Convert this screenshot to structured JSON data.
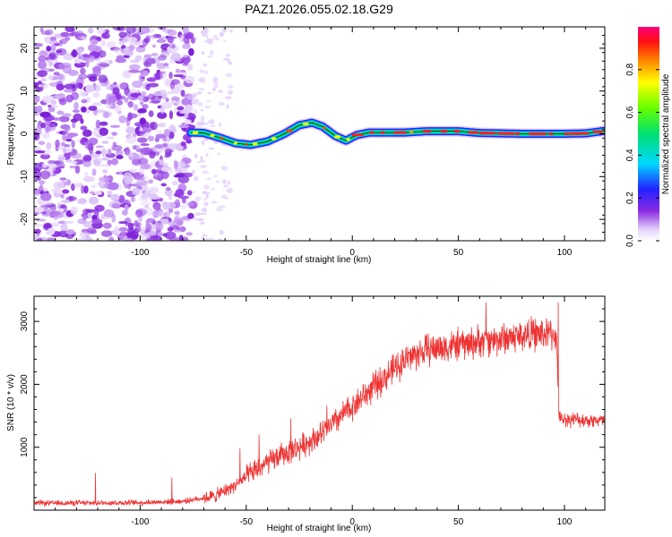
{
  "title": "PAZ1.2026.055.02.18.G29",
  "chart_data": [
    {
      "type": "heatmap",
      "xlabel": "Height of straight line (km)",
      "ylabel": "Frequency (Hz)",
      "xlim": [
        -150,
        119
      ],
      "ylim": [
        -25,
        25
      ],
      "xticks": [
        -100,
        -50,
        0,
        50,
        100
      ],
      "yticks": [
        -20,
        -10,
        0,
        10,
        20
      ],
      "noise_region_x": [
        -150,
        -75
      ],
      "ridge": [
        {
          "x": -76,
          "f": 0.3
        },
        {
          "x": -70,
          "f": 0.2
        },
        {
          "x": -62,
          "f": -1.0
        },
        {
          "x": -55,
          "f": -2.2
        },
        {
          "x": -48,
          "f": -2.6
        },
        {
          "x": -40,
          "f": -1.8
        },
        {
          "x": -32,
          "f": 0.0
        },
        {
          "x": -25,
          "f": 2.0
        },
        {
          "x": -19,
          "f": 2.6
        },
        {
          "x": -14,
          "f": 1.7
        },
        {
          "x": -8,
          "f": -0.5
        },
        {
          "x": -3,
          "f": -1.6
        },
        {
          "x": 2,
          "f": -0.3
        },
        {
          "x": 8,
          "f": 0.3
        },
        {
          "x": 25,
          "f": 0.3
        },
        {
          "x": 35,
          "f": 0.6
        },
        {
          "x": 50,
          "f": 0.6
        },
        {
          "x": 60,
          "f": 0.2
        },
        {
          "x": 80,
          "f": 0.0
        },
        {
          "x": 100,
          "f": 0.0
        },
        {
          "x": 110,
          "f": 0.1
        },
        {
          "x": 119,
          "f": 0.7
        }
      ],
      "colorbar": {
        "label": "Normalized spectral amplitude",
        "ticks": [
          0.0,
          0.2,
          0.4,
          0.6,
          0.8
        ],
        "tick_labels": [
          "0.0",
          "0.2",
          "0.4",
          "0.6",
          "0.8"
        ],
        "range": [
          0,
          1
        ]
      }
    },
    {
      "type": "line",
      "xlabel": "Height of straight line (km)",
      "ylabel": "SNR (10 * v/v)",
      "xlim": [
        -150,
        119
      ],
      "ylim": [
        0,
        3400
      ],
      "xticks": [
        -100,
        -50,
        0,
        50,
        100
      ],
      "yticks": [
        1000,
        2000,
        3000
      ],
      "series": [
        {
          "name": "SNR",
          "color": "#ee3333",
          "trend": [
            {
              "x": -150,
              "y": 110
            },
            {
              "x": -100,
              "y": 120
            },
            {
              "x": -80,
              "y": 140
            },
            {
              "x": -65,
              "y": 220
            },
            {
              "x": -55,
              "y": 400
            },
            {
              "x": -45,
              "y": 650
            },
            {
              "x": -35,
              "y": 850
            },
            {
              "x": -25,
              "y": 1000
            },
            {
              "x": -15,
              "y": 1200
            },
            {
              "x": -5,
              "y": 1500
            },
            {
              "x": 5,
              "y": 1800
            },
            {
              "x": 15,
              "y": 2100
            },
            {
              "x": 25,
              "y": 2400
            },
            {
              "x": 35,
              "y": 2550
            },
            {
              "x": 45,
              "y": 2600
            },
            {
              "x": 55,
              "y": 2650
            },
            {
              "x": 65,
              "y": 2700
            },
            {
              "x": 75,
              "y": 2750
            },
            {
              "x": 85,
              "y": 2800
            },
            {
              "x": 96,
              "y": 2800
            },
            {
              "x": 97.5,
              "y": 1450
            },
            {
              "x": 119,
              "y": 1420
            }
          ],
          "spikes": [
            {
              "x": -121,
              "y": 590
            },
            {
              "x": -85,
              "y": 520
            },
            {
              "x": -53,
              "y": 980
            },
            {
              "x": -44,
              "y": 1200
            },
            {
              "x": -29,
              "y": 1460
            },
            {
              "x": -12,
              "y": 1660
            },
            {
              "x": 63,
              "y": 3300
            },
            {
              "x": 97,
              "y": 3300
            }
          ]
        }
      ]
    }
  ]
}
